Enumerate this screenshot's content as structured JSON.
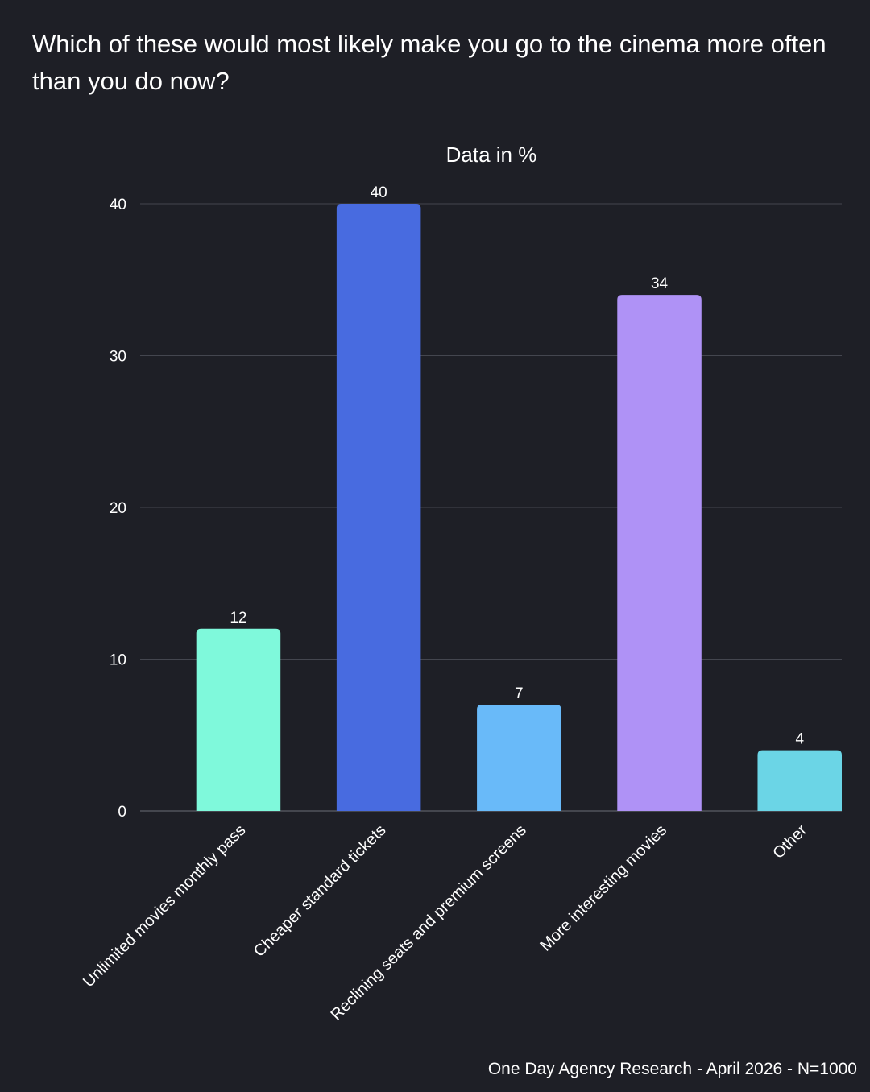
{
  "title": "Which of these would most likely make you go to the cinema more often than you do now?",
  "footer": "One Day Agency Research - April 2026 - N=1000",
  "chart_data": {
    "type": "bar",
    "subtitle": "Data in %",
    "categories": [
      "Unlimited movies monthly pass",
      "Cheaper standard tickets",
      "Reclining seats and premium screens",
      "More interesting movies",
      "Other"
    ],
    "values": [
      12,
      40,
      7,
      34,
      4
    ],
    "colors": [
      "#7ff9db",
      "#486be0",
      "#69baf9",
      "#af92f6",
      "#6bd5e6"
    ],
    "ylim": [
      0,
      40
    ],
    "yticks": [
      0,
      10,
      20,
      30,
      40
    ],
    "grid": true,
    "data_labels": true,
    "xlabel": "",
    "ylabel": "",
    "legend": "none"
  }
}
